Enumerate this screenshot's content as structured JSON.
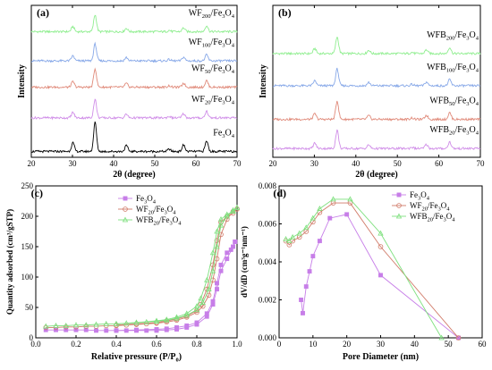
{
  "chart_data": [
    {
      "panel": "(a)",
      "type": "line",
      "xlabel": "2θ (degree)",
      "ylabel": "Intensity",
      "xlim": [
        20,
        70
      ],
      "xticks": [
        20,
        30,
        40,
        50,
        60,
        70
      ],
      "peaks": [
        30.1,
        35.5,
        43.1,
        53.5,
        57.0,
        62.6
      ],
      "peak_heights": [
        0.3,
        1.0,
        0.2,
        0.08,
        0.22,
        0.36
      ],
      "series": [
        {
          "name": "WF200/Fe3O4",
          "label_main": "WF",
          "label_sub": "200",
          "label_tail": "/Fe",
          "label_sub2": "3",
          "label_end": "O",
          "label_sub3": "4",
          "color": "#90ee90",
          "offset": 4.3,
          "scale": 0.55
        },
        {
          "name": "WF100/Fe3O4",
          "label_main": "WF",
          "label_sub": "100",
          "label_tail": "/Fe",
          "label_sub2": "3",
          "label_end": "O",
          "label_sub3": "4",
          "color": "#87a8e8",
          "offset": 3.3,
          "scale": 0.55
        },
        {
          "name": "WF50/Fe3O4",
          "label_main": "WF",
          "label_sub": "50",
          "label_tail": "/Fe",
          "label_sub2": "3",
          "label_end": "O",
          "label_sub3": "4",
          "color": "#e08a7a",
          "offset": 2.4,
          "scale": 0.6
        },
        {
          "name": "WF20/Fe3O4",
          "label_main": "WF",
          "label_sub": "20",
          "label_tail": "/Fe",
          "label_sub2": "3",
          "label_end": "O",
          "label_sub3": "4",
          "color": "#d08ee8",
          "offset": 1.35,
          "scale": 0.6
        },
        {
          "name": "Fe3O4",
          "label_main": "Fe",
          "label_sub": "3",
          "label_tail": "O",
          "label_sub2": "4",
          "label_end": "",
          "label_sub3": "",
          "color": "#000000",
          "offset": 0.2,
          "scale": 0.95
        }
      ]
    },
    {
      "panel": "(b)",
      "type": "line",
      "xlabel": "2θ (degree)",
      "ylabel": "Intensity",
      "xlim": [
        20,
        70
      ],
      "xticks": [
        20,
        30,
        40,
        50,
        60,
        70
      ],
      "peaks": [
        30.1,
        35.5,
        43.1,
        53.5,
        57.0,
        62.6
      ],
      "peak_heights": [
        0.3,
        1.0,
        0.2,
        0.08,
        0.22,
        0.36
      ],
      "series": [
        {
          "name": "WFB200/Fe3O4",
          "label_main": "WFB",
          "label_sub": "200",
          "label_tail": "/Fe",
          "label_sub2": "3",
          "label_end": "O",
          "label_sub3": "4",
          "color": "#90ee90",
          "offset": 3.55,
          "scale": 0.55
        },
        {
          "name": "WFB100/Fe3O4",
          "label_main": "WFB",
          "label_sub": "100",
          "label_tail": "/Fe",
          "label_sub2": "3",
          "label_end": "O",
          "label_sub3": "4",
          "color": "#87a8e8",
          "offset": 2.45,
          "scale": 0.55
        },
        {
          "name": "WFB50/Fe3O4",
          "label_main": "WFB",
          "label_sub": "50",
          "label_tail": "/Fe",
          "label_sub2": "3",
          "label_end": "O",
          "label_sub3": "4",
          "color": "#e08a7a",
          "offset": 1.3,
          "scale": 0.6
        },
        {
          "name": "WFB20/Fe3O4",
          "label_main": "WFB",
          "label_sub": "20",
          "label_tail": "/Fe",
          "label_sub2": "3",
          "label_end": "O",
          "label_sub3": "4",
          "color": "#d08ee8",
          "offset": 0.3,
          "scale": 0.6
        }
      ]
    },
    {
      "panel": "(c)",
      "type": "line",
      "xlabel_main": "Relative pressure (P/P",
      "xlabel_sub": "0",
      "xlabel_end": ")",
      "ylabel": "Quantity adsorbed (cm³/gSTP)",
      "xlim": [
        0,
        1.0
      ],
      "ylim": [
        0,
        250
      ],
      "xticks": [
        0.0,
        0.2,
        0.4,
        0.6,
        0.8,
        1.0
      ],
      "yticks": [
        0,
        50,
        100,
        150,
        200,
        250
      ],
      "legend_position": "top-left",
      "series": [
        {
          "name": "Fe3O4",
          "marker": "square",
          "color": "#c77ee8",
          "adsorption": [
            [
              0.05,
              13
            ],
            [
              0.1,
              13
            ],
            [
              0.15,
              13
            ],
            [
              0.2,
              13
            ],
            [
              0.25,
              13
            ],
            [
              0.3,
              12
            ],
            [
              0.35,
              12
            ],
            [
              0.4,
              12
            ],
            [
              0.45,
              12
            ],
            [
              0.5,
              12
            ],
            [
              0.55,
              12
            ],
            [
              0.6,
              12
            ],
            [
              0.65,
              13
            ],
            [
              0.7,
              14
            ],
            [
              0.75,
              17
            ],
            [
              0.8,
              22
            ],
            [
              0.85,
              35
            ],
            [
              0.88,
              55
            ],
            [
              0.9,
              80
            ],
            [
              0.92,
              110
            ],
            [
              0.95,
              130
            ],
            [
              0.98,
              150
            ],
            [
              0.99,
              158
            ]
          ],
          "desorption": [
            [
              0.99,
              158
            ],
            [
              0.97,
              145
            ],
            [
              0.95,
              140
            ],
            [
              0.92,
              120
            ],
            [
              0.9,
              90
            ],
            [
              0.88,
              60
            ],
            [
              0.85,
              40
            ],
            [
              0.8,
              25
            ],
            [
              0.75,
              20
            ],
            [
              0.7,
              17
            ],
            [
              0.65,
              15
            ],
            [
              0.6,
              14
            ],
            [
              0.5,
              13
            ],
            [
              0.4,
              12
            ]
          ]
        },
        {
          "name": "WF20/Fe3O4",
          "marker": "circle",
          "color": "#d07a68",
          "adsorption": [
            [
              0.05,
              17
            ],
            [
              0.1,
              17
            ],
            [
              0.15,
              18
            ],
            [
              0.2,
              18
            ],
            [
              0.25,
              19
            ],
            [
              0.3,
              19
            ],
            [
              0.35,
              20
            ],
            [
              0.4,
              20
            ],
            [
              0.45,
              21
            ],
            [
              0.5,
              22
            ],
            [
              0.55,
              23
            ],
            [
              0.6,
              24
            ],
            [
              0.65,
              26
            ],
            [
              0.7,
              29
            ],
            [
              0.75,
              34
            ],
            [
              0.8,
              42
            ],
            [
              0.83,
              52
            ],
            [
              0.86,
              70
            ],
            [
              0.88,
              95
            ],
            [
              0.9,
              130
            ],
            [
              0.92,
              170
            ],
            [
              0.95,
              195
            ],
            [
              0.98,
              208
            ],
            [
              1.0,
              212
            ]
          ],
          "desorption": [
            [
              1.0,
              212
            ],
            [
              0.98,
              205
            ],
            [
              0.95,
              200
            ],
            [
              0.92,
              190
            ],
            [
              0.9,
              160
            ],
            [
              0.88,
              120
            ],
            [
              0.85,
              80
            ],
            [
              0.82,
              55
            ],
            [
              0.8,
              45
            ],
            [
              0.75,
              36
            ],
            [
              0.7,
              31
            ],
            [
              0.65,
              28
            ],
            [
              0.6,
              25
            ],
            [
              0.5,
              23
            ],
            [
              0.4,
              21
            ]
          ]
        },
        {
          "name": "WFB20/Fe3O4",
          "marker": "triangle",
          "color": "#7ee07e",
          "adsorption": [
            [
              0.05,
              19
            ],
            [
              0.1,
              20
            ],
            [
              0.15,
              20
            ],
            [
              0.2,
              21
            ],
            [
              0.25,
              21
            ],
            [
              0.3,
              22
            ],
            [
              0.35,
              23
            ],
            [
              0.4,
              23
            ],
            [
              0.45,
              24
            ],
            [
              0.5,
              25
            ],
            [
              0.55,
              26
            ],
            [
              0.6,
              27
            ],
            [
              0.65,
              29
            ],
            [
              0.7,
              32
            ],
            [
              0.75,
              37
            ],
            [
              0.8,
              46
            ],
            [
              0.83,
              58
            ],
            [
              0.86,
              80
            ],
            [
              0.88,
              110
            ],
            [
              0.9,
              150
            ],
            [
              0.92,
              185
            ],
            [
              0.95,
              200
            ],
            [
              0.98,
              210
            ],
            [
              1.0,
              214
            ]
          ],
          "desorption": [
            [
              1.0,
              214
            ],
            [
              0.98,
              208
            ],
            [
              0.95,
              203
            ],
            [
              0.92,
              195
            ],
            [
              0.9,
              175
            ],
            [
              0.88,
              140
            ],
            [
              0.85,
              95
            ],
            [
              0.82,
              65
            ],
            [
              0.8,
              52
            ],
            [
              0.75,
              40
            ],
            [
              0.7,
              34
            ],
            [
              0.65,
              30
            ],
            [
              0.6,
              28
            ],
            [
              0.5,
              25
            ],
            [
              0.4,
              23
            ]
          ]
        }
      ]
    },
    {
      "panel": "(d)",
      "type": "line",
      "xlabel": "Pore Diameter (nm)",
      "ylabel": "dV/dD (cm³g⁻¹nm⁻¹)",
      "xlim": [
        0,
        60
      ],
      "ylim": [
        0,
        0.008
      ],
      "xticks": [
        0,
        10,
        20,
        30,
        40,
        50,
        60
      ],
      "yticks": [
        0.0,
        0.002,
        0.004,
        0.006,
        0.008
      ],
      "legend_position": "top-right",
      "series": [
        {
          "name": "Fe3O4",
          "marker": "square",
          "color": "#c77ee8",
          "points": [
            [
              6.5,
              0.002
            ],
            [
              7.0,
              0.0013
            ],
            [
              8.0,
              0.0027
            ],
            [
              9.0,
              0.0035
            ],
            [
              10.0,
              0.0043
            ],
            [
              12.0,
              0.0051
            ],
            [
              15.0,
              0.0063
            ],
            [
              20.0,
              0.0065
            ],
            [
              30.0,
              0.0033
            ],
            [
              53.0,
              0.0
            ]
          ]
        },
        {
          "name": "WF20/Fe3O4",
          "marker": "circle",
          "color": "#d07a68",
          "points": [
            [
              2.0,
              0.0051
            ],
            [
              3.0,
              0.0049
            ],
            [
              4.0,
              0.0051
            ],
            [
              6.0,
              0.0053
            ],
            [
              8.0,
              0.0056
            ],
            [
              10.0,
              0.0061
            ],
            [
              12.0,
              0.0066
            ],
            [
              16.0,
              0.0071
            ],
            [
              21.0,
              0.0071
            ],
            [
              30.0,
              0.0048
            ],
            [
              53.0,
              0.0
            ]
          ]
        },
        {
          "name": "WFB20/Fe3O4",
          "marker": "triangle",
          "color": "#7ee07e",
          "points": [
            [
              2.0,
              0.0052
            ],
            [
              3.0,
              0.0051
            ],
            [
              4.0,
              0.0053
            ],
            [
              6.0,
              0.0055
            ],
            [
              8.0,
              0.0058
            ],
            [
              10.0,
              0.0063
            ],
            [
              12.0,
              0.0068
            ],
            [
              16.0,
              0.0073
            ],
            [
              21.0,
              0.0073
            ],
            [
              30.0,
              0.0055
            ],
            [
              48.0,
              0.0
            ]
          ]
        }
      ]
    }
  ]
}
